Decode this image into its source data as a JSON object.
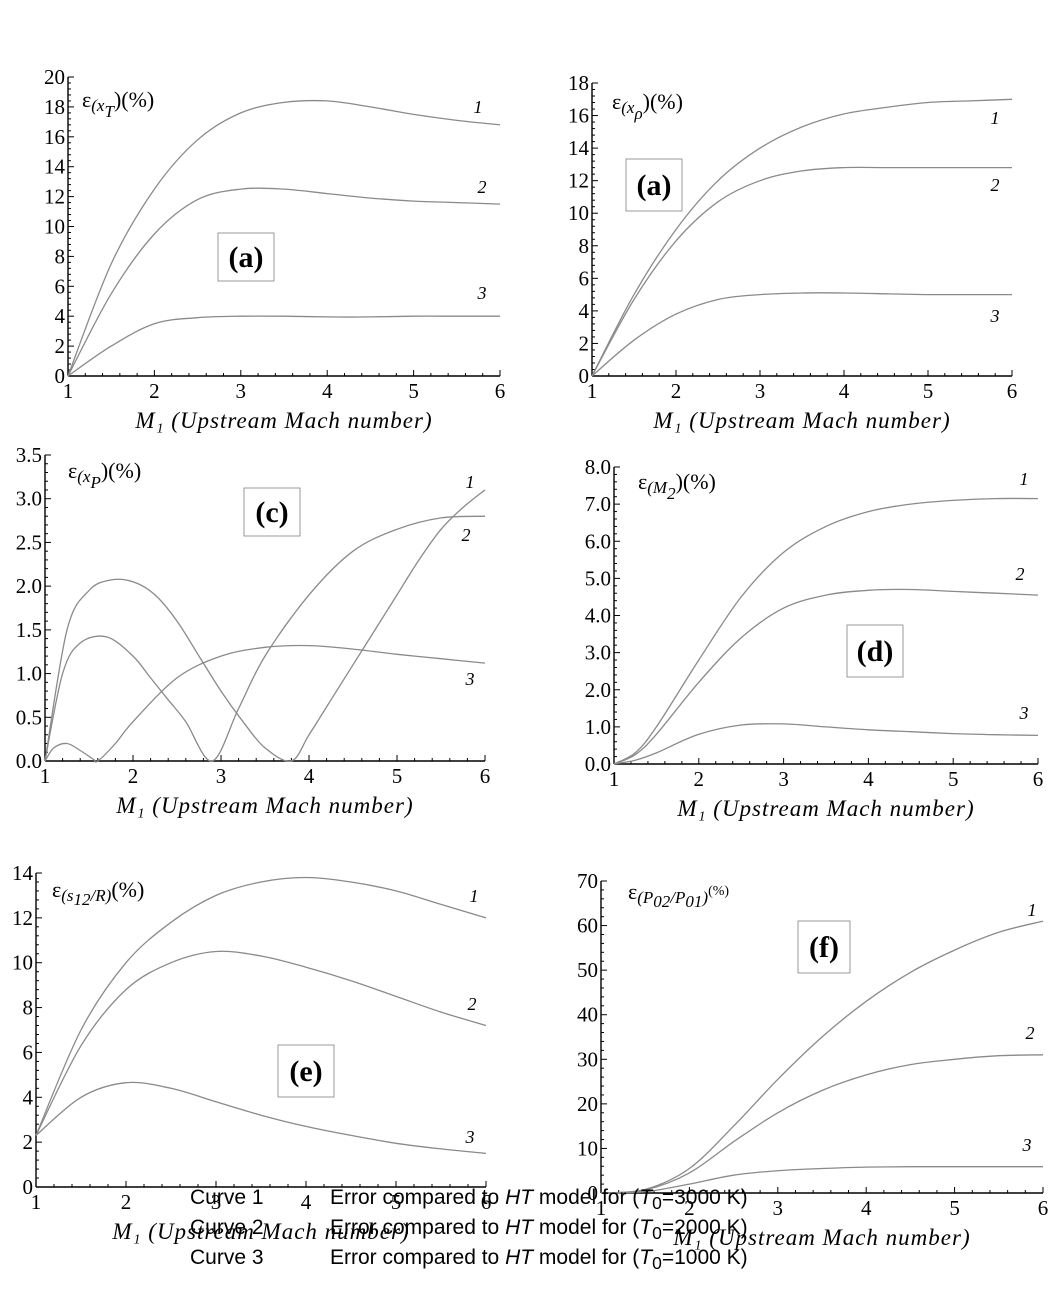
{
  "chart_data": [
    {
      "type": "line",
      "panel": "(a)",
      "ylabel": "ε(x_T)(%)",
      "xlabel": "M₁ (Upstream Mach number)",
      "xlim": [
        1,
        6
      ],
      "ylim": [
        0,
        20
      ],
      "xticks": [
        1,
        2,
        3,
        4,
        5,
        6
      ],
      "yticks": [
        0,
        2,
        4,
        6,
        8,
        10,
        12,
        14,
        16,
        18,
        20
      ],
      "ytick_decimals": 0,
      "series": [
        {
          "name": "1",
          "x": [
            1,
            1.5,
            2,
            2.5,
            3,
            3.5,
            4,
            4.5,
            5,
            5.5,
            6
          ],
          "y": [
            0,
            7.5,
            12.5,
            15.8,
            17.6,
            18.3,
            18.4,
            18.0,
            17.5,
            17.1,
            16.8
          ]
        },
        {
          "name": "2",
          "x": [
            1,
            1.5,
            2,
            2.5,
            3,
            3.5,
            4,
            4.5,
            5,
            5.5,
            6
          ],
          "y": [
            0,
            5.5,
            9.5,
            11.8,
            12.5,
            12.5,
            12.2,
            11.9,
            11.7,
            11.6,
            11.5
          ]
        },
        {
          "name": "3",
          "x": [
            1,
            1.5,
            2,
            2.5,
            3,
            3.5,
            4,
            4.5,
            5,
            5.5,
            6
          ],
          "y": [
            0,
            2.0,
            3.5,
            3.9,
            4.0,
            4.0,
            3.95,
            3.95,
            4.0,
            4.0,
            4.0
          ]
        }
      ]
    },
    {
      "type": "line",
      "panel": "(a)",
      "ylabel": "ε(x_ρ)(%)",
      "xlabel": "M₁ (Upstream Mach number)",
      "xlim": [
        1,
        6
      ],
      "ylim": [
        0,
        18
      ],
      "xticks": [
        1,
        2,
        3,
        4,
        5,
        6
      ],
      "yticks": [
        0,
        2,
        4,
        6,
        8,
        10,
        12,
        14,
        16,
        18
      ],
      "ytick_decimals": 0,
      "series": [
        {
          "name": "1",
          "x": [
            1,
            1.5,
            2,
            2.5,
            3,
            3.5,
            4,
            4.5,
            5,
            5.5,
            6
          ],
          "y": [
            0,
            5.0,
            9.0,
            12.0,
            14.0,
            15.3,
            16.1,
            16.5,
            16.8,
            16.9,
            17.0
          ]
        },
        {
          "name": "2",
          "x": [
            1,
            1.5,
            2,
            2.5,
            3,
            3.5,
            4,
            4.5,
            5,
            5.5,
            6
          ],
          "y": [
            0,
            4.7,
            8.3,
            10.7,
            12.0,
            12.6,
            12.8,
            12.8,
            12.8,
            12.8,
            12.8
          ]
        },
        {
          "name": "3",
          "x": [
            1,
            1.5,
            2,
            2.5,
            3,
            3.5,
            4,
            4.5,
            5,
            5.5,
            6
          ],
          "y": [
            0,
            2.2,
            3.8,
            4.7,
            5.0,
            5.1,
            5.1,
            5.05,
            5.0,
            5.0,
            5.0
          ]
        }
      ]
    },
    {
      "type": "line",
      "panel": "(c)",
      "ylabel": "ε(x_P)(%)",
      "xlabel": "M₁ (Upstream Mach number)",
      "xlim": [
        1,
        6
      ],
      "ylim": [
        0,
        3.5
      ],
      "xticks": [
        1,
        2,
        3,
        4,
        5,
        6
      ],
      "yticks": [
        0,
        0.5,
        1.0,
        1.5,
        2.0,
        2.5,
        3.0,
        3.5
      ],
      "ytick_decimals": 1,
      "series": [
        {
          "name": "1",
          "x": [
            1,
            1.25,
            1.5,
            1.75,
            2,
            2.25,
            2.5,
            2.75,
            3,
            3.25,
            3.5,
            3.8,
            4,
            4.25,
            4.5,
            4.75,
            5,
            5.25,
            5.5,
            5.75,
            6
          ],
          "y": [
            0,
            1.5,
            1.95,
            2.07,
            2.05,
            1.9,
            1.6,
            1.2,
            0.8,
            0.45,
            0.15,
            0,
            0.3,
            0.7,
            1.1,
            1.5,
            1.9,
            2.3,
            2.65,
            2.9,
            3.1
          ]
        },
        {
          "name": "2",
          "x": [
            1,
            1.2,
            1.4,
            1.7,
            2,
            2.2,
            2.4,
            2.6,
            2.9,
            3.2,
            3.5,
            4,
            4.5,
            5,
            5.5,
            6
          ],
          "y": [
            0,
            1.0,
            1.35,
            1.42,
            1.2,
            0.95,
            0.7,
            0.45,
            0,
            0.6,
            1.2,
            1.9,
            2.4,
            2.65,
            2.78,
            2.8
          ]
        },
        {
          "name": "3",
          "x": [
            1,
            1.1,
            1.25,
            1.4,
            1.55,
            1.6,
            1.8,
            2,
            2.5,
            3,
            3.5,
            4,
            4.5,
            5,
            5.5,
            6
          ],
          "y": [
            0,
            0.15,
            0.2,
            0.12,
            0.02,
            0,
            0.2,
            0.45,
            0.95,
            1.2,
            1.3,
            1.32,
            1.28,
            1.22,
            1.17,
            1.12
          ]
        }
      ]
    },
    {
      "type": "line",
      "panel": "(d)",
      "ylabel": "ε(M_2)(%)",
      "xlabel": "M₁ (Upstream Mach number)",
      "xlim": [
        1,
        6
      ],
      "ylim": [
        0,
        8.0
      ],
      "xticks": [
        1,
        2,
        3,
        4,
        5,
        6
      ],
      "yticks": [
        0,
        1.0,
        2.0,
        3.0,
        4.0,
        5.0,
        6.0,
        7.0,
        8.0
      ],
      "ytick_decimals": 1,
      "series": [
        {
          "name": "1",
          "x": [
            1,
            1.25,
            1.5,
            2,
            2.5,
            3,
            3.5,
            4,
            4.5,
            5,
            5.5,
            6
          ],
          "y": [
            0,
            0.3,
            1.0,
            2.8,
            4.5,
            5.7,
            6.4,
            6.8,
            7.0,
            7.1,
            7.15,
            7.15
          ]
        },
        {
          "name": "2",
          "x": [
            1,
            1.25,
            1.5,
            2,
            2.5,
            3,
            3.5,
            4,
            4.5,
            5,
            5.5,
            6
          ],
          "y": [
            0,
            0.25,
            0.8,
            2.2,
            3.4,
            4.2,
            4.55,
            4.68,
            4.7,
            4.65,
            4.6,
            4.55
          ]
        },
        {
          "name": "3",
          "x": [
            1,
            1.25,
            1.5,
            2,
            2.5,
            3,
            3.5,
            4,
            4.5,
            5,
            5.5,
            6
          ],
          "y": [
            0,
            0.1,
            0.3,
            0.8,
            1.05,
            1.08,
            1.0,
            0.92,
            0.87,
            0.82,
            0.79,
            0.77
          ]
        }
      ]
    },
    {
      "type": "line",
      "panel": "(e)",
      "ylabel": "ε(s_12/R)(%)",
      "xlabel": "M₁ (Upstream Mach number)",
      "xlim": [
        1,
        6
      ],
      "ylim": [
        0,
        14
      ],
      "xticks": [
        1,
        2,
        3,
        4,
        5,
        6
      ],
      "yticks": [
        0,
        2,
        4,
        6,
        8,
        10,
        12,
        14
      ],
      "ytick_decimals": 0,
      "series": [
        {
          "name": "1",
          "x": [
            1,
            1.5,
            2,
            2.5,
            3,
            3.5,
            4,
            4.5,
            5,
            5.5,
            6
          ],
          "y": [
            2.3,
            7.0,
            10.0,
            11.8,
            13.0,
            13.6,
            13.8,
            13.6,
            13.2,
            12.6,
            12.0
          ]
        },
        {
          "name": "2",
          "x": [
            1,
            1.5,
            2,
            2.5,
            3,
            3.5,
            4,
            4.5,
            5,
            5.5,
            6
          ],
          "y": [
            2.3,
            6.3,
            8.8,
            10.0,
            10.5,
            10.3,
            9.8,
            9.2,
            8.5,
            7.8,
            7.2
          ]
        },
        {
          "name": "3",
          "x": [
            1,
            1.5,
            2,
            2.5,
            3,
            3.5,
            4,
            4.5,
            5,
            5.5,
            6
          ],
          "y": [
            2.3,
            4.0,
            4.65,
            4.4,
            3.8,
            3.2,
            2.7,
            2.3,
            1.95,
            1.7,
            1.5
          ]
        }
      ]
    },
    {
      "type": "line",
      "panel": "(f)",
      "ylabel": "ε(P02/P01)(%)",
      "xlabel": "M₁ (Upstream Mach number)",
      "xlim": [
        1,
        6
      ],
      "ylim": [
        0,
        70
      ],
      "xticks": [
        1,
        2,
        3,
        4,
        5,
        6
      ],
      "yticks": [
        0,
        10,
        20,
        30,
        40,
        50,
        60,
        70
      ],
      "ytick_decimals": 0,
      "series": [
        {
          "name": "1",
          "x": [
            1,
            1.5,
            2,
            2.5,
            3,
            3.5,
            4,
            4.5,
            5,
            5.5,
            6
          ],
          "y": [
            0,
            0.8,
            5.5,
            15.0,
            25.5,
            35.0,
            43.0,
            49.5,
            54.5,
            58.5,
            61.0
          ]
        },
        {
          "name": "2",
          "x": [
            1,
            1.5,
            2,
            2.5,
            3,
            3.5,
            4,
            4.5,
            5,
            5.5,
            6
          ],
          "y": [
            0,
            0.7,
            4.5,
            11.5,
            18.0,
            23.0,
            26.5,
            28.8,
            30.0,
            30.8,
            31.0
          ]
        },
        {
          "name": "3",
          "x": [
            1,
            1.5,
            2,
            2.5,
            3,
            3.5,
            4,
            4.5,
            5,
            5.5,
            6
          ],
          "y": [
            0,
            0.3,
            2.0,
            4.0,
            5.0,
            5.5,
            5.8,
            5.9,
            5.9,
            5.9,
            5.9
          ]
        }
      ]
    }
  ],
  "legend": [
    {
      "curve": "Curve 1",
      "desc_pre": "Error compared to ",
      "desc_model": "HT",
      "desc_mid": " model for (",
      "desc_t": "T",
      "desc_sub": "0",
      "desc_val": "=3000 K)"
    },
    {
      "curve": "Curve 2",
      "desc_pre": "Error compared to ",
      "desc_model": "HT",
      "desc_mid": " model for (",
      "desc_t": "T",
      "desc_sub": "0",
      "desc_val": "=2000 K)"
    },
    {
      "curve": "Curve 3",
      "desc_pre": "Error compared to ",
      "desc_model": "HT",
      "desc_mid": " model for (",
      "desc_t": "T",
      "desc_sub": "0",
      "desc_val": "=1000 K)"
    }
  ],
  "colors": {
    "curve": "#8a8a8a",
    "axis": "#000000",
    "tag_border": "#999999"
  }
}
